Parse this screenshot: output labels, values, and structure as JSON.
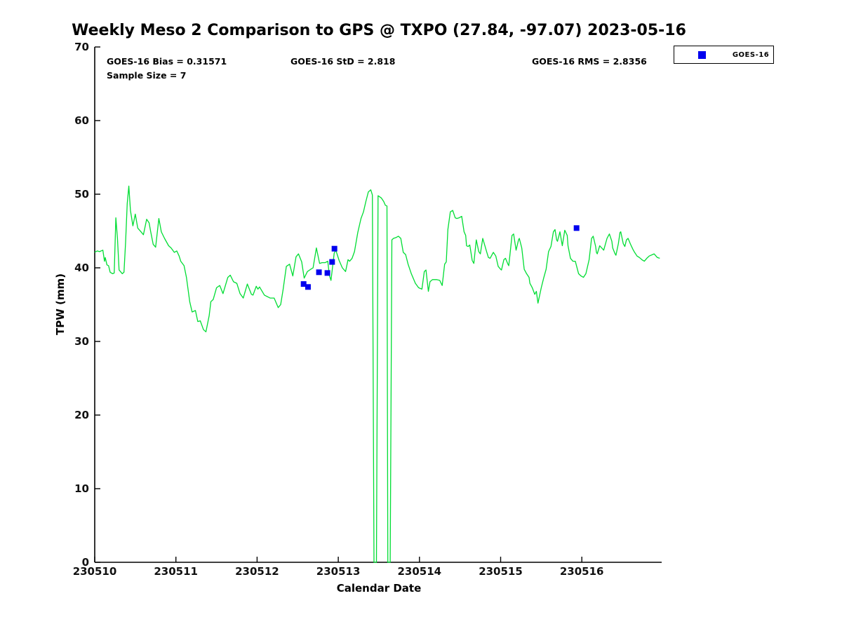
{
  "header": {
    "title": "Weekly Meso 2 Comparison to GPS @ TXPO (27.84, -97.07) 2023-05-16",
    "stats": {
      "bias": "GOES-16 Bias = 0.31571",
      "std": "GOES-16 StD = 2.818",
      "rms": "GOES-16 RMS = 2.8356",
      "sample_size": "Sample Size = 7"
    }
  },
  "legend": {
    "position": "top-right",
    "entries": [
      {
        "label": "GOES-16",
        "marker": "blue-square",
        "color": "#0000ee"
      }
    ]
  },
  "colors": {
    "gps_line": "#00dd33",
    "goes16_marker": "#0000ee",
    "axis": "#000000",
    "background": "#ffffff"
  },
  "chart_data": {
    "type": "line",
    "title": "Weekly Meso 2 Comparison to GPS @ TXPO (27.84, -97.07) 2023-05-16",
    "xlabel": "Calendar Date",
    "ylabel": "TPW (mm)",
    "grid": false,
    "x_axis": {
      "tick_labels": [
        "230510",
        "230511",
        "230512",
        "230513",
        "230514",
        "230515",
        "230516"
      ],
      "tick_days": [
        0,
        1,
        2,
        3,
        4,
        5,
        6
      ],
      "domain_days": [
        0,
        7
      ]
    },
    "y_axis": {
      "min": 0,
      "max": 70,
      "tick_step": 10,
      "tick_labels": [
        "0",
        "10",
        "20",
        "30",
        "40",
        "50",
        "60",
        "70"
      ]
    },
    "series": [
      {
        "name": "GPS TPW",
        "type": "line",
        "color": "#00dd33",
        "points_day_tpw": [
          [
            0.0,
            42.1
          ],
          [
            0.03,
            42.3
          ],
          [
            0.06,
            42.2
          ],
          [
            0.1,
            42.4
          ],
          [
            0.12,
            40.9
          ],
          [
            0.13,
            41.4
          ],
          [
            0.15,
            40.4
          ],
          [
            0.17,
            40.3
          ],
          [
            0.19,
            39.4
          ],
          [
            0.22,
            39.2
          ],
          [
            0.24,
            39.3
          ],
          [
            0.26,
            46.8
          ],
          [
            0.28,
            44.0
          ],
          [
            0.3,
            39.7
          ],
          [
            0.34,
            39.2
          ],
          [
            0.36,
            39.4
          ],
          [
            0.38,
            43.5
          ],
          [
            0.4,
            48.7
          ],
          [
            0.42,
            51.1
          ],
          [
            0.44,
            47.8
          ],
          [
            0.47,
            45.7
          ],
          [
            0.5,
            47.3
          ],
          [
            0.53,
            45.4
          ],
          [
            0.57,
            44.9
          ],
          [
            0.6,
            44.5
          ],
          [
            0.64,
            46.6
          ],
          [
            0.67,
            46.1
          ],
          [
            0.69,
            44.9
          ],
          [
            0.72,
            43.2
          ],
          [
            0.75,
            42.8
          ],
          [
            0.79,
            46.7
          ],
          [
            0.82,
            44.9
          ],
          [
            0.86,
            44.0
          ],
          [
            0.91,
            43.0
          ],
          [
            0.94,
            42.7
          ],
          [
            0.98,
            42.1
          ],
          [
            1.01,
            42.3
          ],
          [
            1.04,
            41.6
          ],
          [
            1.06,
            40.9
          ],
          [
            1.1,
            40.3
          ],
          [
            1.13,
            38.7
          ],
          [
            1.17,
            35.4
          ],
          [
            1.2,
            34.0
          ],
          [
            1.24,
            34.2
          ],
          [
            1.27,
            32.7
          ],
          [
            1.3,
            32.8
          ],
          [
            1.34,
            31.6
          ],
          [
            1.37,
            31.3
          ],
          [
            1.41,
            33.5
          ],
          [
            1.43,
            35.4
          ],
          [
            1.46,
            35.7
          ],
          [
            1.5,
            37.3
          ],
          [
            1.54,
            37.6
          ],
          [
            1.58,
            36.5
          ],
          [
            1.64,
            38.7
          ],
          [
            1.67,
            39.0
          ],
          [
            1.71,
            38.1
          ],
          [
            1.75,
            37.9
          ],
          [
            1.79,
            36.5
          ],
          [
            1.83,
            35.9
          ],
          [
            1.88,
            37.8
          ],
          [
            1.93,
            36.4
          ],
          [
            1.95,
            36.3
          ],
          [
            1.99,
            37.5
          ],
          [
            2.01,
            37.1
          ],
          [
            2.03,
            37.4
          ],
          [
            2.09,
            36.3
          ],
          [
            2.16,
            35.9
          ],
          [
            2.21,
            35.9
          ],
          [
            2.26,
            34.6
          ],
          [
            2.29,
            35.0
          ],
          [
            2.32,
            37.0
          ],
          [
            2.36,
            40.2
          ],
          [
            2.4,
            40.5
          ],
          [
            2.44,
            38.9
          ],
          [
            2.48,
            41.5
          ],
          [
            2.51,
            41.9
          ],
          [
            2.55,
            40.8
          ],
          [
            2.58,
            38.6
          ],
          [
            2.62,
            39.5
          ],
          [
            2.66,
            39.8
          ],
          [
            2.69,
            40.0
          ],
          [
            2.73,
            42.7
          ],
          [
            2.77,
            40.6
          ],
          [
            2.8,
            40.7
          ],
          [
            2.84,
            40.7
          ],
          [
            2.87,
            40.9
          ],
          [
            2.89,
            39.0
          ],
          [
            2.91,
            38.3
          ],
          [
            2.95,
            42.0
          ],
          [
            2.97,
            42.4
          ],
          [
            3.01,
            41.0
          ],
          [
            3.05,
            40.0
          ],
          [
            3.09,
            39.5
          ],
          [
            3.12,
            41.1
          ],
          [
            3.14,
            40.9
          ],
          [
            3.17,
            41.3
          ],
          [
            3.2,
            42.2
          ],
          [
            3.24,
            44.8
          ],
          [
            3.28,
            46.7
          ],
          [
            3.31,
            47.6
          ],
          [
            3.34,
            49.0
          ],
          [
            3.37,
            50.3
          ],
          [
            3.4,
            50.6
          ],
          [
            3.42,
            49.9
          ],
          [
            3.44,
            0
          ],
          [
            3.47,
            0
          ],
          [
            3.49,
            49.8
          ],
          [
            3.53,
            49.5
          ],
          [
            3.56,
            49.0
          ],
          [
            3.58,
            48.5
          ],
          [
            3.6,
            48.4
          ],
          [
            3.61,
            0
          ],
          [
            3.64,
            0
          ],
          [
            3.66,
            43.8
          ],
          [
            3.68,
            44.0
          ],
          [
            3.71,
            44.1
          ],
          [
            3.74,
            44.3
          ],
          [
            3.77,
            44.0
          ],
          [
            3.8,
            42.1
          ],
          [
            3.83,
            41.8
          ],
          [
            3.86,
            40.5
          ],
          [
            3.9,
            39.2
          ],
          [
            3.95,
            37.9
          ],
          [
            3.99,
            37.3
          ],
          [
            4.03,
            37.1
          ],
          [
            4.06,
            39.5
          ],
          [
            4.08,
            39.7
          ],
          [
            4.11,
            36.8
          ],
          [
            4.13,
            38.1
          ],
          [
            4.16,
            38.4
          ],
          [
            4.21,
            38.4
          ],
          [
            4.25,
            38.3
          ],
          [
            4.28,
            37.6
          ],
          [
            4.31,
            40.5
          ],
          [
            4.33,
            40.8
          ],
          [
            4.35,
            45.2
          ],
          [
            4.38,
            47.6
          ],
          [
            4.41,
            47.8
          ],
          [
            4.44,
            46.8
          ],
          [
            4.46,
            46.7
          ],
          [
            4.49,
            46.8
          ],
          [
            4.52,
            47.0
          ],
          [
            4.55,
            44.9
          ],
          [
            4.57,
            44.4
          ],
          [
            4.58,
            43.0
          ],
          [
            4.6,
            42.9
          ],
          [
            4.62,
            43.1
          ],
          [
            4.65,
            41.0
          ],
          [
            4.67,
            40.6
          ],
          [
            4.7,
            43.8
          ],
          [
            4.73,
            42.2
          ],
          [
            4.75,
            41.9
          ],
          [
            4.78,
            44.0
          ],
          [
            4.83,
            42.1
          ],
          [
            4.85,
            41.4
          ],
          [
            4.87,
            41.3
          ],
          [
            4.9,
            41.9
          ],
          [
            4.91,
            42.1
          ],
          [
            4.94,
            41.6
          ],
          [
            4.97,
            40.2
          ],
          [
            5.0,
            39.8
          ],
          [
            5.01,
            39.7
          ],
          [
            5.04,
            41.1
          ],
          [
            5.06,
            41.3
          ],
          [
            5.09,
            40.5
          ],
          [
            5.1,
            40.3
          ],
          [
            5.14,
            44.4
          ],
          [
            5.16,
            44.6
          ],
          [
            5.19,
            42.4
          ],
          [
            5.22,
            43.8
          ],
          [
            5.23,
            44.0
          ],
          [
            5.26,
            42.7
          ],
          [
            5.29,
            39.8
          ],
          [
            5.32,
            39.2
          ],
          [
            5.35,
            38.7
          ],
          [
            5.36,
            37.9
          ],
          [
            5.39,
            37.3
          ],
          [
            5.42,
            36.4
          ],
          [
            5.44,
            36.8
          ],
          [
            5.46,
            35.2
          ],
          [
            5.5,
            37.3
          ],
          [
            5.53,
            38.6
          ],
          [
            5.56,
            39.8
          ],
          [
            5.59,
            42.2
          ],
          [
            5.62,
            42.9
          ],
          [
            5.65,
            44.9
          ],
          [
            5.67,
            45.2
          ],
          [
            5.69,
            43.8
          ],
          [
            5.7,
            43.6
          ],
          [
            5.73,
            44.9
          ],
          [
            5.76,
            43.0
          ],
          [
            5.79,
            45.1
          ],
          [
            5.82,
            44.4
          ],
          [
            5.83,
            43.0
          ],
          [
            5.86,
            41.3
          ],
          [
            5.89,
            40.9
          ],
          [
            5.92,
            40.9
          ],
          [
            5.96,
            39.2
          ],
          [
            5.99,
            38.9
          ],
          [
            6.02,
            38.7
          ],
          [
            6.05,
            39.2
          ],
          [
            6.09,
            41.1
          ],
          [
            6.12,
            44.0
          ],
          [
            6.14,
            44.3
          ],
          [
            6.17,
            42.9
          ],
          [
            6.18,
            42.1
          ],
          [
            6.19,
            41.9
          ],
          [
            6.22,
            43.0
          ],
          [
            6.27,
            42.4
          ],
          [
            6.31,
            44.0
          ],
          [
            6.34,
            44.6
          ],
          [
            6.37,
            43.6
          ],
          [
            6.38,
            42.7
          ],
          [
            6.41,
            41.9
          ],
          [
            6.42,
            41.7
          ],
          [
            6.45,
            43.3
          ],
          [
            6.47,
            44.8
          ],
          [
            6.48,
            44.9
          ],
          [
            6.51,
            43.3
          ],
          [
            6.53,
            42.9
          ],
          [
            6.55,
            43.8
          ],
          [
            6.57,
            44.0
          ],
          [
            6.6,
            43.2
          ],
          [
            6.63,
            42.5
          ],
          [
            6.65,
            42.1
          ],
          [
            6.68,
            41.6
          ],
          [
            6.71,
            41.4
          ],
          [
            6.74,
            41.1
          ],
          [
            6.77,
            40.9
          ],
          [
            6.8,
            41.3
          ],
          [
            6.83,
            41.6
          ],
          [
            6.89,
            41.9
          ],
          [
            6.93,
            41.4
          ],
          [
            6.96,
            41.3
          ]
        ]
      },
      {
        "name": "GOES-16",
        "type": "scatter",
        "marker": "square",
        "color": "#0000ee",
        "points_day_tpw": [
          [
            2.573,
            37.8
          ],
          [
            2.627,
            37.4
          ],
          [
            2.762,
            39.4
          ],
          [
            2.866,
            39.3
          ],
          [
            2.924,
            40.8
          ],
          [
            2.953,
            42.6
          ],
          [
            5.935,
            45.4
          ]
        ]
      }
    ]
  }
}
